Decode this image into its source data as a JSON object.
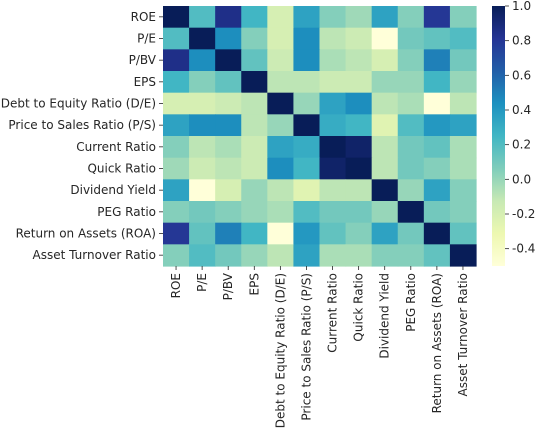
{
  "chart_data": {
    "type": "heatmap",
    "title": "",
    "xlabel": "",
    "ylabel": "",
    "labels": [
      "ROE",
      "P/E",
      "P/BV",
      "EPS",
      "Debt to Equity Ratio (D/E)",
      "Price to Sales Ratio (P/S)",
      "Current Ratio",
      "Quick Ratio",
      "Dividend Yield",
      "PEG Ratio",
      "Return on Assets (ROA)",
      "Asset Turnover Ratio"
    ],
    "matrix": [
      [
        1.0,
        0.2,
        0.85,
        0.25,
        -0.2,
        0.35,
        0.05,
        -0.02,
        0.35,
        0.05,
        0.8,
        0.05
      ],
      [
        0.2,
        1.0,
        0.45,
        0.05,
        -0.2,
        0.45,
        -0.1,
        -0.15,
        -0.5,
        0.1,
        0.15,
        0.2
      ],
      [
        0.85,
        0.45,
        1.0,
        0.15,
        -0.15,
        0.45,
        -0.05,
        -0.1,
        -0.2,
        0.05,
        0.5,
        0.1
      ],
      [
        0.25,
        0.05,
        0.15,
        1.0,
        -0.1,
        -0.1,
        -0.15,
        -0.15,
        0.0,
        0.0,
        0.25,
        0.0
      ],
      [
        -0.2,
        -0.2,
        -0.15,
        -0.1,
        1.0,
        0.0,
        0.35,
        0.45,
        -0.1,
        -0.05,
        -0.5,
        -0.1
      ],
      [
        0.35,
        0.45,
        0.45,
        -0.1,
        0.0,
        1.0,
        0.3,
        0.25,
        -0.25,
        0.2,
        0.4,
        0.35
      ],
      [
        0.05,
        -0.1,
        -0.05,
        -0.15,
        0.35,
        0.3,
        1.0,
        0.95,
        -0.1,
        0.1,
        0.15,
        -0.05
      ],
      [
        -0.02,
        -0.15,
        -0.1,
        -0.15,
        0.45,
        0.25,
        0.95,
        1.0,
        -0.1,
        0.1,
        0.05,
        -0.05
      ],
      [
        0.35,
        -0.5,
        -0.2,
        0.0,
        -0.1,
        -0.25,
        -0.1,
        -0.1,
        1.0,
        0.0,
        0.35,
        0.05
      ],
      [
        0.05,
        0.1,
        0.05,
        0.0,
        -0.05,
        0.2,
        0.1,
        0.1,
        0.0,
        1.0,
        0.1,
        0.05
      ],
      [
        0.8,
        0.15,
        0.5,
        0.25,
        -0.5,
        0.4,
        0.15,
        0.05,
        0.35,
        0.1,
        1.0,
        0.15
      ],
      [
        0.05,
        0.2,
        0.1,
        0.0,
        -0.1,
        0.35,
        -0.05,
        -0.05,
        0.05,
        0.05,
        0.15,
        1.0
      ]
    ],
    "colormap": "YlGnBu",
    "colorbar": {
      "vmin": -0.5,
      "vmax": 1.0,
      "ticks": [
        -0.4,
        -0.2,
        0.0,
        0.2,
        0.4,
        0.6,
        0.8,
        1.0
      ],
      "tick_labels": [
        "-0.4",
        "-0.2",
        "0.0",
        "0.2",
        "0.4",
        "0.6",
        "0.8",
        "1.0"
      ],
      "placement": "right"
    },
    "grid": false,
    "legend": "colorbar-right"
  }
}
